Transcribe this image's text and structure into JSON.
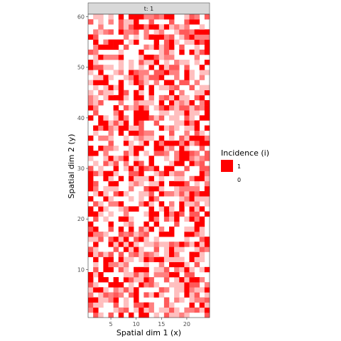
{
  "chart_data": {
    "type": "heatmap",
    "facet_label": "t: 1",
    "xlabel": "Spatial dim 1 (x)",
    "ylabel": "Spatial dim 2 (y)",
    "xlim": [
      0.5,
      24.5
    ],
    "ylim": [
      0.5,
      60.5
    ],
    "x_ticks": [
      5,
      10,
      15,
      20
    ],
    "y_ticks": [
      10,
      20,
      30,
      40,
      50,
      60
    ],
    "nx": 24,
    "ny": 60,
    "legend": {
      "title": "Incidence (i)",
      "high_label": "1",
      "low_label": "0",
      "position": "right"
    },
    "colors": {
      "high": "#ff0000",
      "low": "#ffffff",
      "strip_bg": "#d9d9d9",
      "panel_bg": "#ffffff",
      "panel_border": "#333333"
    },
    "z": "generated",
    "value_scale": [
      0,
      1
    ]
  }
}
